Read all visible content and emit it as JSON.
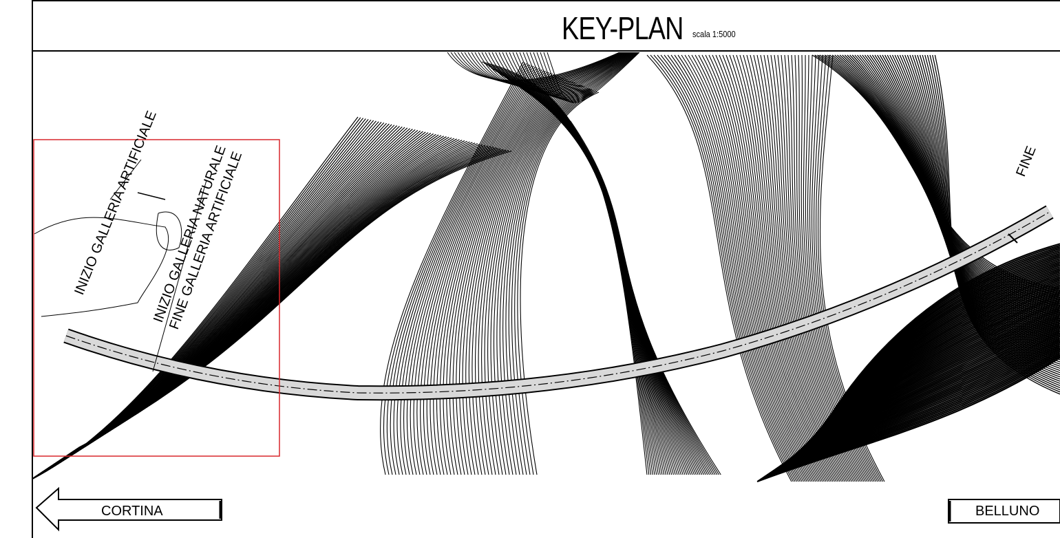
{
  "header": {
    "title": "KEY-PLAN",
    "scale": "scala 1:5000"
  },
  "annotations": {
    "tunnel_start_artificial": "INIZIO GALLERIA ARTIFICIALE",
    "tunnel_start_natural": "INIZIO GALLERIA NATURALE",
    "tunnel_end_artificial": "FINE GALLERIA ARTIFICIALE",
    "tunnel_end_right": "FINE"
  },
  "directions": {
    "left": "CORTINA",
    "right": "BELLUNO"
  },
  "colors": {
    "ink": "#000000",
    "highlight_box": "#d9262b",
    "road": "#d9d9d9"
  }
}
